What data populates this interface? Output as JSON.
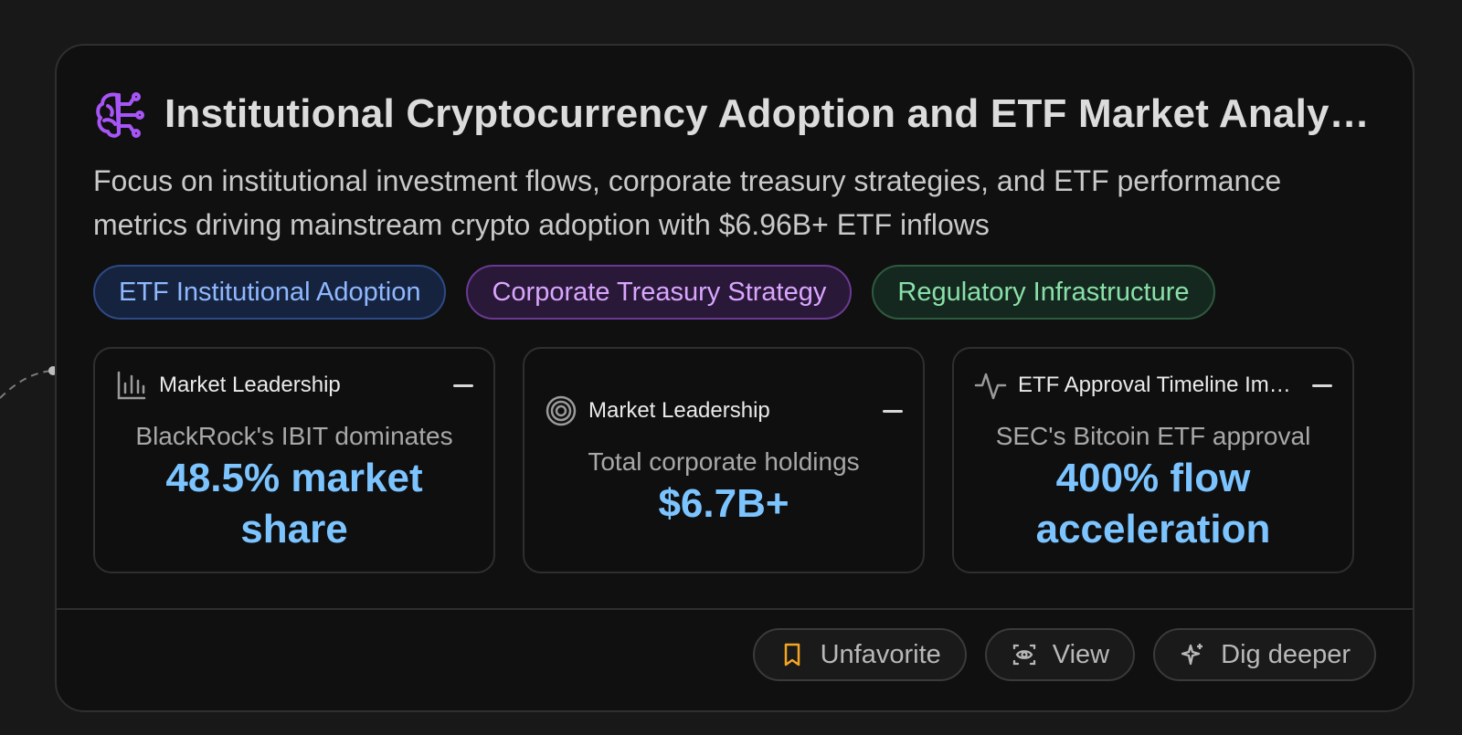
{
  "card": {
    "title": "Institutional Cryptocurrency Adoption and ETF Market Analysis",
    "description": "Focus on institutional investment flows, corporate treasury strategies, and ETF performance metrics driving mainstream crypto adoption with $6.96B+ ETF inflows",
    "icon": "brain-icon",
    "tags": [
      {
        "label": "ETF Institutional Adoption",
        "color": "#8fb8ff"
      },
      {
        "label": "Corporate Treasury Strategy",
        "color": "#d9a6ff"
      },
      {
        "label": "Regulatory Infrastructure",
        "color": "#89e0a8"
      }
    ],
    "metrics": [
      {
        "icon": "bar-chart-icon",
        "title": "Market Leadership",
        "subtitle": "BlackRock's IBIT dominates",
        "value": "48.5% market share"
      },
      {
        "icon": "target-icon",
        "title": "Market Leadership",
        "subtitle": "Total corporate holdings",
        "value": "$6.7B+"
      },
      {
        "icon": "activity-icon",
        "title": "ETF Approval Timeline Impact",
        "subtitle": "SEC's Bitcoin ETF approval",
        "value": "400% flow acceleration"
      }
    ],
    "actions": [
      {
        "icon": "bookmark-icon",
        "label": "Unfavorite"
      },
      {
        "icon": "eye-icon",
        "label": "View"
      },
      {
        "icon": "sparkle-icon",
        "label": "Dig deeper"
      }
    ],
    "accent_color": "#7cc4ff",
    "brand_color": "#a855f7"
  }
}
